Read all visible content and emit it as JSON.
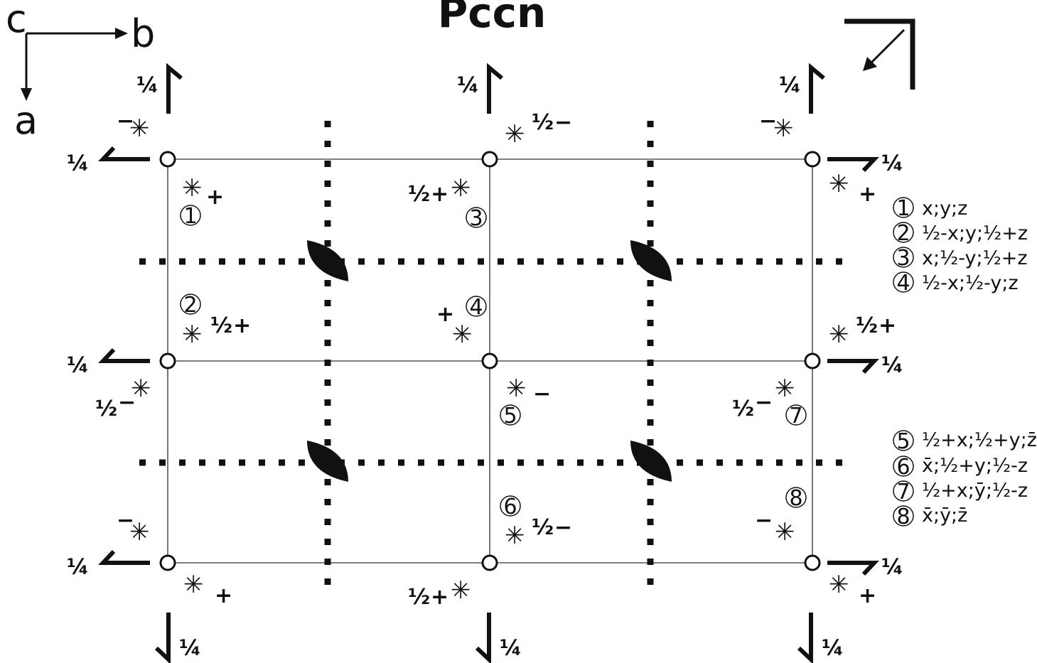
{
  "title": "Pccn",
  "axes": {
    "c": "c",
    "b": "b",
    "a": "a"
  },
  "quarter": "¼",
  "asterisk": "✳",
  "cell_annotations": [
    {
      "sign": "−",
      "frac": "",
      "id": "sym-corner-top-left"
    },
    {
      "sign": "+",
      "frac": "",
      "id": "sym-1"
    },
    {
      "sign": "−",
      "frac": "½",
      "id": "sym-top-mid"
    },
    {
      "sign": "+",
      "frac": "½",
      "id": "sym-3"
    },
    {
      "sign": "−",
      "frac": "",
      "id": "sym-corner-top-right"
    },
    {
      "sign": "+",
      "frac": "",
      "id": "sym-top-right-lower"
    }
  ],
  "operations_group_1": [
    {
      "num": "1",
      "expr": "x;y;z"
    },
    {
      "num": "2",
      "expr": "½-x;y;½+z"
    },
    {
      "num": "3",
      "expr": "x;½-y;½+z"
    },
    {
      "num": "4",
      "expr": "½-x;½-y;z"
    }
  ],
  "operations_group_2": [
    {
      "num": "5",
      "expr": "½+x;½+y;z̄"
    },
    {
      "num": "6",
      "expr": "x̄;½+y;½-z"
    },
    {
      "num": "7",
      "expr": "½+x;ȳ;½-z"
    },
    {
      "num": "8",
      "expr": "x̄;ȳ;z̄"
    }
  ],
  "diagram_labels": {
    "n1": "1",
    "n2": "2",
    "n3": "3",
    "n4": "4",
    "n5": "5",
    "n6": "6",
    "n7": "7",
    "n8": "8",
    "plus": "+",
    "minus": "−",
    "half": "½"
  }
}
